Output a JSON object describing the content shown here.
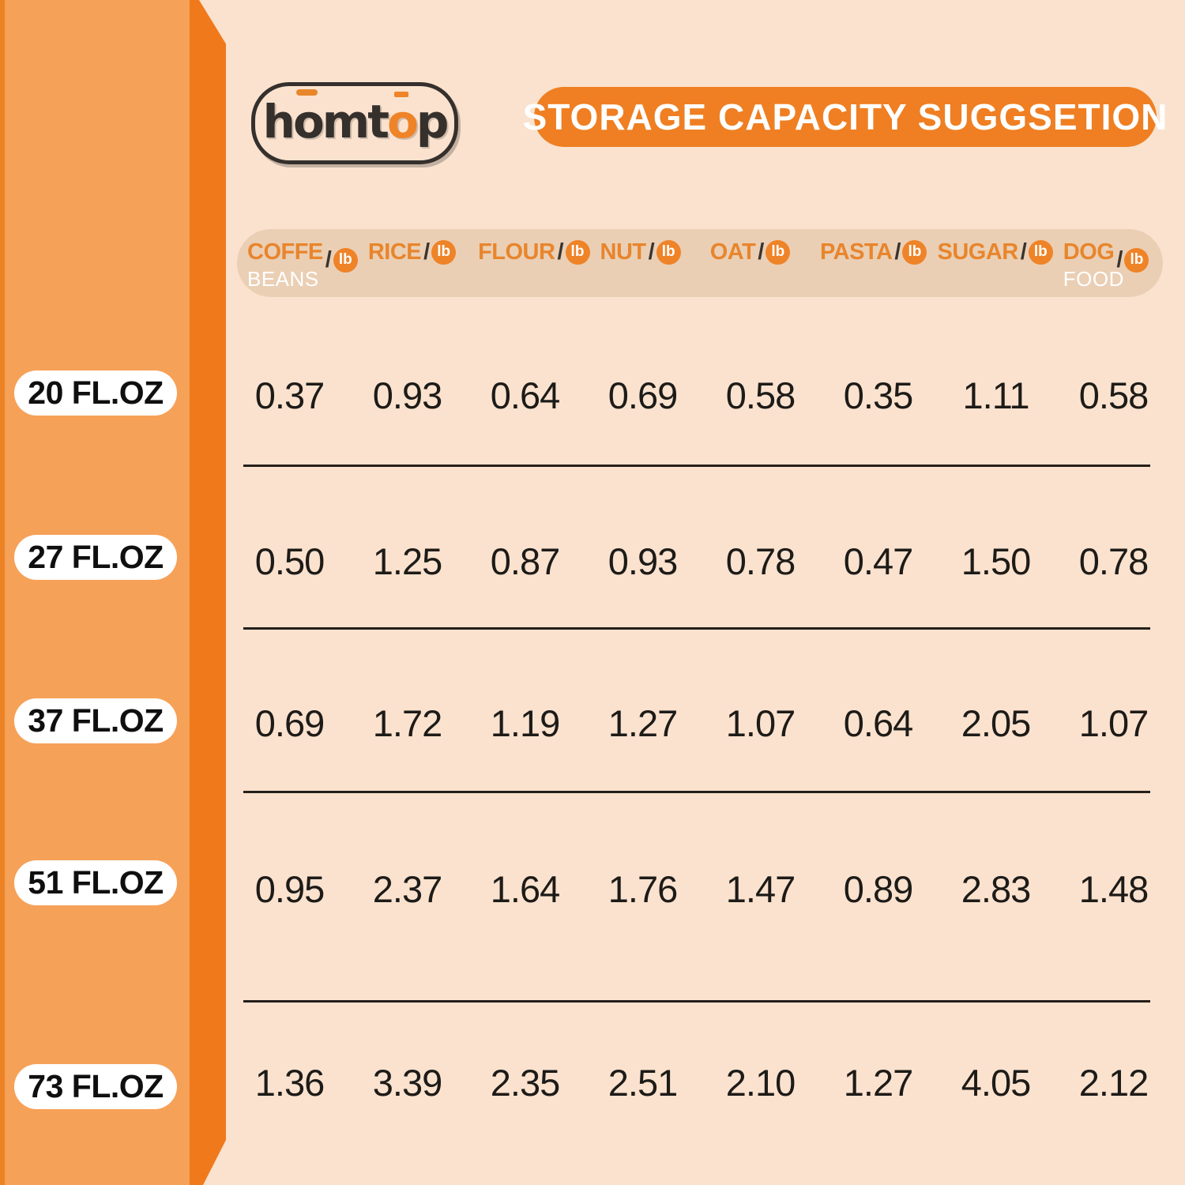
{
  "banner": {
    "title": "STORAGE CAPACITY SUGGSETION"
  },
  "logo": {
    "l1": "h",
    "l2": "o",
    "l3": "mt",
    "l4": "o",
    "l5": "p"
  },
  "table": {
    "slash": "/",
    "unit_badge": "lb",
    "columns": [
      {
        "name": "COFFE",
        "sub": "BEANS"
      },
      {
        "name": "RICE",
        "sub": ""
      },
      {
        "name": "FLOUR",
        "sub": ""
      },
      {
        "name": "NUT",
        "sub": ""
      },
      {
        "name": "OAT",
        "sub": ""
      },
      {
        "name": "PASTA",
        "sub": ""
      },
      {
        "name": "SUGAR",
        "sub": ""
      },
      {
        "name": "DOG",
        "sub": "FOOD"
      }
    ],
    "rows": [
      {
        "label": "20 FL.OZ",
        "values": [
          "0.37",
          "0.93",
          "0.64",
          "0.69",
          "0.58",
          "0.35",
          "1.11",
          "0.58"
        ]
      },
      {
        "label": "27 FL.OZ",
        "values": [
          "0.50",
          "1.25",
          "0.87",
          "0.93",
          "0.78",
          "0.47",
          "1.50",
          "0.78"
        ]
      },
      {
        "label": "37 FL.OZ",
        "values": [
          "0.69",
          "1.72",
          "1.19",
          "1.27",
          "1.07",
          "0.64",
          "2.05",
          "1.07"
        ]
      },
      {
        "label": "51 FL.OZ",
        "values": [
          "0.95",
          "2.37",
          "1.64",
          "1.76",
          "1.47",
          "0.89",
          "2.83",
          "1.48"
        ]
      },
      {
        "label": "73 FL.OZ",
        "values": [
          "1.36",
          "3.39",
          "2.35",
          "2.51",
          "2.10",
          "1.27",
          "4.05",
          "2.12"
        ]
      }
    ]
  },
  "colors": {
    "accent_orange": "#EF7F22",
    "band_orange": "#F6A158",
    "fold_orange": "#F0791C",
    "background": "#FAE2CE",
    "header_band": "#EACFB5",
    "header_text": "#E8852C"
  },
  "chart_data": {
    "type": "table",
    "title": "STORAGE CAPACITY SUGGSETION",
    "columns": [
      "COFFE BEANS /lb",
      "RICE /lb",
      "FLOUR /lb",
      "NUT /lb",
      "OAT /lb",
      "PASTA /lb",
      "SUGAR /lb",
      "DOG FOOD /lb"
    ],
    "row_labels": [
      "20 FL.OZ",
      "27 FL.OZ",
      "37 FL.OZ",
      "51 FL.OZ",
      "73 FL.OZ"
    ],
    "values": [
      [
        0.37,
        0.93,
        0.64,
        0.69,
        0.58,
        0.35,
        1.11,
        0.58
      ],
      [
        0.5,
        1.25,
        0.87,
        0.93,
        0.78,
        0.47,
        1.5,
        0.78
      ],
      [
        0.69,
        1.72,
        1.19,
        1.27,
        1.07,
        0.64,
        2.05,
        1.07
      ],
      [
        0.95,
        2.37,
        1.64,
        1.76,
        1.47,
        0.89,
        2.83,
        1.48
      ],
      [
        1.36,
        3.39,
        2.35,
        2.51,
        2.1,
        1.27,
        4.05,
        2.12
      ]
    ]
  }
}
